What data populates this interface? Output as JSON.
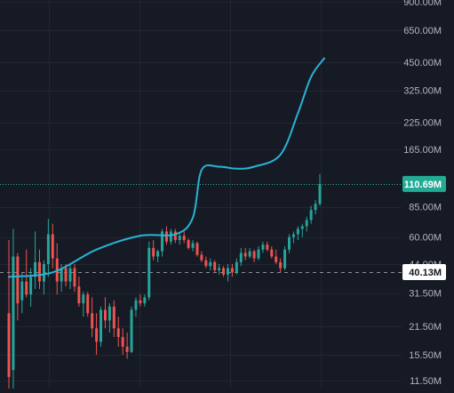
{
  "colors": {
    "background": "#161a25",
    "grid": "#222632",
    "axis_text": "#b2b5be",
    "up": "#26a69a",
    "down": "#ef5350",
    "projection_line": "#2ab3d6",
    "current_price_badge": "#22ab94",
    "marker_badge": "#ffffff",
    "marker_line": "#8a8e99"
  },
  "chart_data": {
    "type": "candlestick",
    "y_scale": "log",
    "ylim": [
      10500000,
      920000000
    ],
    "y_ticks": [
      {
        "value": 900000000,
        "label": "900.00M"
      },
      {
        "value": 650000000,
        "label": "650.00M"
      },
      {
        "value": 450000000,
        "label": "450.00M"
      },
      {
        "value": 325000000,
        "label": "325.00M"
      },
      {
        "value": 225000000,
        "label": "225.00M"
      },
      {
        "value": 165000000,
        "label": "165.00M"
      },
      {
        "value": 85000000,
        "label": "85.00M"
      },
      {
        "value": 60000000,
        "label": "60.00M"
      },
      {
        "value": 44000000,
        "label": "44.00M"
      },
      {
        "value": 31500000,
        "label": "31.50M"
      },
      {
        "value": 21500000,
        "label": "21.50M"
      },
      {
        "value": 15500000,
        "label": "15.50M"
      },
      {
        "value": 11500000,
        "label": "11.50M"
      }
    ],
    "current_price": {
      "value": 110690000,
      "label": "110.69M"
    },
    "marker_level": {
      "value": 40130000,
      "label": "40.13M"
    },
    "candles": [
      [
        25,
        58,
        8,
        12
      ],
      [
        13,
        66,
        10,
        48
      ],
      [
        48,
        50,
        23,
        28
      ],
      [
        29,
        40,
        25,
        36
      ],
      [
        36,
        52,
        30,
        31
      ],
      [
        31,
        42,
        27,
        38
      ],
      [
        38,
        64,
        33,
        45
      ],
      [
        45,
        52,
        33,
        36
      ],
      [
        36,
        46,
        31,
        44
      ],
      [
        44,
        74,
        38,
        62
      ],
      [
        62,
        70,
        42,
        47
      ],
      [
        47,
        56,
        31,
        36
      ],
      [
        36,
        44,
        32,
        42
      ],
      [
        42,
        44,
        34,
        36
      ],
      [
        36,
        44,
        33,
        42
      ],
      [
        42,
        44,
        32,
        34
      ],
      [
        34,
        38,
        27,
        28
      ],
      [
        28,
        32,
        24,
        31
      ],
      [
        31,
        32,
        24,
        25
      ],
      [
        25,
        30,
        19,
        21
      ],
      [
        21,
        25,
        15.5,
        18
      ],
      [
        18,
        27,
        17,
        26
      ],
      [
        26,
        30,
        21,
        23
      ],
      [
        23,
        28,
        20,
        27
      ],
      [
        27,
        29,
        19,
        21
      ],
      [
        21,
        24,
        17,
        19
      ],
      [
        19,
        21,
        15.5,
        17
      ],
      [
        17,
        20,
        14.8,
        16
      ],
      [
        16,
        27,
        15.8,
        26
      ],
      [
        26,
        30,
        24,
        29
      ],
      [
        29,
        31,
        27,
        28
      ],
      [
        28,
        31,
        27,
        30
      ],
      [
        30,
        57,
        29,
        53
      ],
      [
        53,
        58,
        46,
        48
      ],
      [
        48,
        52,
        45,
        51
      ],
      [
        51,
        66,
        48,
        64
      ],
      [
        64,
        68,
        55,
        57
      ],
      [
        57,
        66,
        55,
        64
      ],
      [
        64,
        66,
        56,
        58
      ],
      [
        58,
        63,
        55,
        61
      ],
      [
        61,
        64,
        56,
        58
      ],
      [
        58,
        59,
        52,
        53
      ],
      [
        53,
        58,
        51,
        56
      ],
      [
        56,
        57,
        48,
        49
      ],
      [
        49,
        51,
        45,
        46
      ],
      [
        46,
        48,
        42,
        43
      ],
      [
        43,
        47,
        41,
        45
      ],
      [
        45,
        46,
        40,
        41
      ],
      [
        41,
        44,
        39,
        42
      ],
      [
        42,
        43,
        38,
        39
      ],
      [
        39,
        44,
        36,
        42
      ],
      [
        42,
        44,
        38,
        40
      ],
      [
        40,
        47,
        39,
        45
      ],
      [
        45,
        53,
        43,
        50
      ],
      [
        50,
        53,
        46,
        48
      ],
      [
        48,
        53,
        47,
        51
      ],
      [
        51,
        52,
        45,
        47
      ],
      [
        47,
        54,
        46,
        52
      ],
      [
        52,
        57,
        50,
        55
      ],
      [
        55,
        57,
        51,
        52
      ],
      [
        52,
        54,
        47,
        48
      ],
      [
        48,
        52,
        44,
        45
      ],
      [
        45,
        47,
        40,
        42
      ],
      [
        42,
        54,
        41,
        52
      ],
      [
        52,
        62,
        50,
        60
      ],
      [
        60,
        64,
        56,
        62
      ],
      [
        62,
        68,
        58,
        66
      ],
      [
        66,
        70,
        60,
        68
      ],
      [
        68,
        76,
        64,
        73
      ],
      [
        73,
        86,
        70,
        82
      ],
      [
        82,
        92,
        78,
        88
      ],
      [
        88,
        124,
        86,
        110.69
      ]
    ],
    "projection_curve": [
      [
        0,
        38
      ],
      [
        10,
        40
      ],
      [
        20,
        52
      ],
      [
        30,
        61
      ],
      [
        38,
        62
      ],
      [
        42,
        75
      ],
      [
        44,
        130
      ],
      [
        48,
        135
      ],
      [
        52,
        132
      ],
      [
        56,
        135
      ],
      [
        62,
        155
      ],
      [
        66,
        250
      ],
      [
        69,
        380
      ],
      [
        72,
        470
      ]
    ]
  }
}
